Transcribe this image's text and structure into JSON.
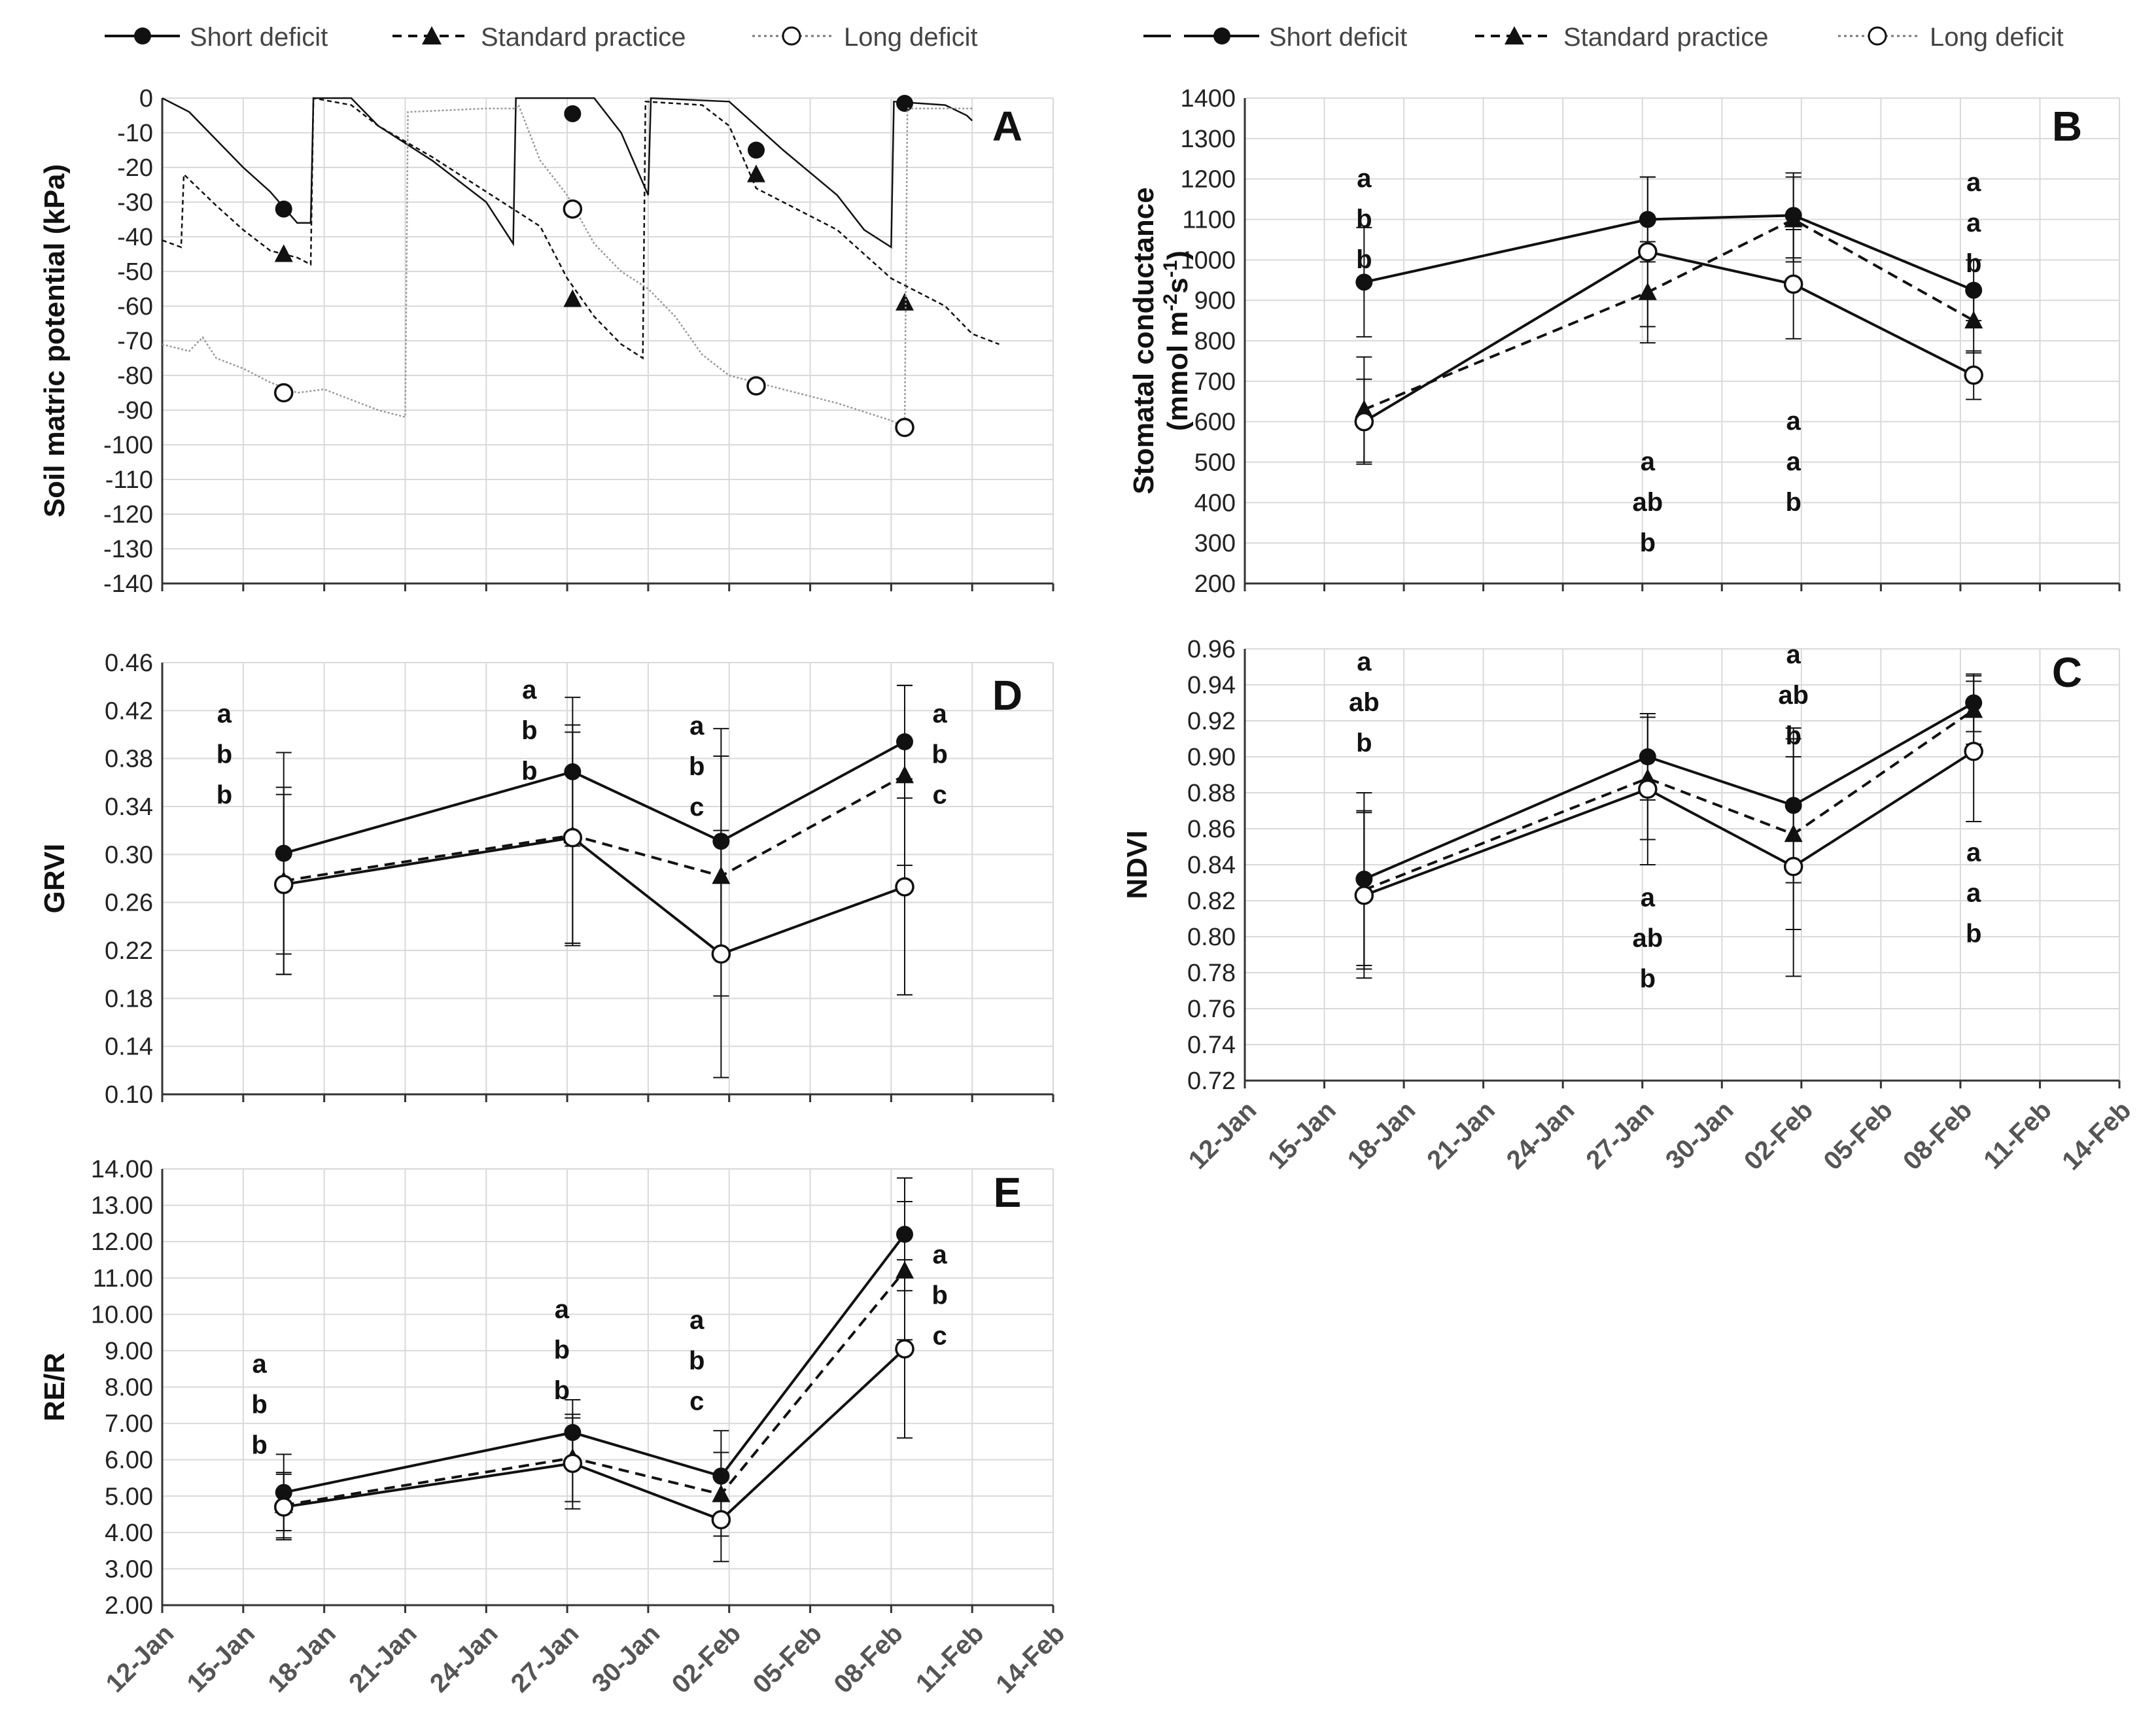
{
  "legend_entries": [
    "Short deficit",
    "Standard practice",
    "Long deficit"
  ],
  "x_tick_labels": [
    "12-Jan",
    "15-Jan",
    "18-Jan",
    "21-Jan",
    "24-Jan",
    "27-Jan",
    "30-Jan",
    "02-Feb",
    "05-Feb",
    "08-Feb",
    "11-Feb",
    "14-Feb"
  ],
  "chart_data": [
    {
      "id": "A",
      "type": "line",
      "panel_label": "A",
      "ylabel": "Soil matric potential (kPa)",
      "ylim": [
        -140,
        0
      ],
      "yticks": [
        0,
        -10,
        -20,
        -30,
        -40,
        -50,
        -60,
        -70,
        -80,
        -90,
        -100,
        -110,
        -120,
        -130,
        -140
      ],
      "xlim": [
        12,
        45
      ],
      "x_note": "x in days since 1-Jan",
      "series": [
        {
          "name": "Short deficit",
          "marker_x": [
            16.5,
            27.2,
            34.0,
            39.5
          ],
          "marker_y": [
            -32,
            -4.5,
            -15,
            -1.5
          ],
          "trace": [
            [
              12,
              0
            ],
            [
              13,
              -4
            ],
            [
              14,
              -12
            ],
            [
              15,
              -20
            ],
            [
              16,
              -27
            ],
            [
              17,
              -36
            ],
            [
              17.5,
              -36
            ],
            [
              17.6,
              0
            ],
            [
              19,
              0
            ],
            [
              20,
              -8
            ],
            [
              22,
              -18
            ],
            [
              24,
              -30
            ],
            [
              25,
              -42
            ],
            [
              25.1,
              0
            ],
            [
              28,
              0
            ],
            [
              29,
              -10
            ],
            [
              30,
              -28
            ],
            [
              30.1,
              0
            ],
            [
              33,
              -1
            ],
            [
              35,
              -15
            ],
            [
              37,
              -28
            ],
            [
              38,
              -38
            ],
            [
              39,
              -43
            ],
            [
              39.1,
              -1
            ],
            [
              41,
              -2
            ],
            [
              41.8,
              -5
            ],
            [
              42,
              -6.5
            ]
          ]
        },
        {
          "name": "Standard practice",
          "marker_x": [
            16.5,
            27.2,
            34.0,
            39.5
          ],
          "marker_y": [
            -45,
            -58,
            -22,
            -59
          ],
          "trace": [
            [
              12,
              -41
            ],
            [
              12.7,
              -43
            ],
            [
              12.8,
              -22
            ],
            [
              14,
              -31
            ],
            [
              15,
              -38
            ],
            [
              16,
              -44
            ],
            [
              17,
              -46
            ],
            [
              17.5,
              -48
            ],
            [
              17.6,
              0
            ],
            [
              19,
              -2
            ],
            [
              20,
              -8
            ],
            [
              22,
              -17
            ],
            [
              24,
              -27
            ],
            [
              26,
              -37
            ],
            [
              27,
              -52
            ],
            [
              28,
              -63
            ],
            [
              29,
              -71
            ],
            [
              29.8,
              -75
            ],
            [
              29.9,
              -1
            ],
            [
              32,
              -2
            ],
            [
              33,
              -8
            ],
            [
              34,
              -26
            ],
            [
              35,
              -30
            ],
            [
              37,
              -38
            ],
            [
              39,
              -52
            ],
            [
              41,
              -60
            ],
            [
              42,
              -68
            ],
            [
              43,
              -71
            ]
          ]
        },
        {
          "name": "Long deficit",
          "marker_x": [
            16.5,
            27.2,
            34.0,
            39.5
          ],
          "marker_y": [
            -85,
            -32,
            -83,
            -95
          ],
          "trace": [
            [
              12,
              -71
            ],
            [
              13,
              -73
            ],
            [
              13.5,
              -69
            ],
            [
              14,
              -75
            ],
            [
              15,
              -78
            ],
            [
              16,
              -82
            ],
            [
              17,
              -85
            ],
            [
              18,
              -84
            ],
            [
              19,
              -87
            ],
            [
              20,
              -90
            ],
            [
              21,
              -92
            ],
            [
              21.1,
              -4
            ],
            [
              24,
              -3
            ],
            [
              25.1,
              -3
            ],
            [
              25.2,
              -2
            ],
            [
              26,
              -18
            ],
            [
              27,
              -28
            ],
            [
              28,
              -42
            ],
            [
              29,
              -50
            ],
            [
              30,
              -55
            ],
            [
              31,
              -63
            ],
            [
              32,
              -74
            ],
            [
              33,
              -80
            ],
            [
              35,
              -84
            ],
            [
              37,
              -88
            ],
            [
              39,
              -93
            ],
            [
              39.5,
              -95
            ],
            [
              39.6,
              -3
            ],
            [
              41,
              -3
            ],
            [
              42,
              -3
            ]
          ]
        }
      ],
      "annotations": []
    },
    {
      "id": "B",
      "type": "line",
      "panel_label": "B",
      "ylabel": "Stomatal conductance",
      "ylabel_line2_base": "(mmol m",
      "ylabel_line2_sup1": "-2",
      "ylabel_line2_mid": "s",
      "ylabel_line2_sup2": "-1",
      "ylabel_line2_end": ")",
      "ylim": [
        200,
        1400
      ],
      "yticks": [
        200,
        300,
        400,
        500,
        600,
        700,
        800,
        900,
        1000,
        1100,
        1200,
        1300,
        1400
      ],
      "xlim": [
        12,
        45
      ],
      "x": [
        16.5,
        27.2,
        32.7,
        39.5
      ],
      "series": [
        {
          "name": "Short deficit",
          "values": [
            945,
            1100,
            1110,
            925
          ],
          "err": [
            135,
            105,
            105,
            75
          ]
        },
        {
          "name": "Standard practice",
          "values": [
            630,
            920,
            1100,
            850
          ],
          "err": [
            130,
            125,
            105,
            80
          ]
        },
        {
          "name": "Long deficit",
          "values": [
            600,
            1020,
            940,
            715
          ],
          "err": [
            105,
            185,
            135,
            60
          ]
        }
      ],
      "annotations": [
        {
          "x": 16.5,
          "y": 1180,
          "lines": [
            "a",
            "b",
            "b"
          ]
        },
        {
          "x": 27.2,
          "y": 480,
          "lines": [
            "a",
            "ab",
            "b"
          ]
        },
        {
          "x": 32.7,
          "y": 580,
          "lines": [
            "a",
            "a",
            "b"
          ]
        },
        {
          "x": 39.5,
          "y": 1170,
          "lines": [
            "a",
            "a",
            "b"
          ]
        }
      ]
    },
    {
      "id": "D",
      "type": "line",
      "panel_label": "D",
      "ylabel": "GRVI",
      "ylim": [
        0.1,
        0.46
      ],
      "yticks": [
        "0.10",
        "0.14",
        "0.18",
        "0.22",
        "0.26",
        "0.30",
        "0.34",
        "0.38",
        "0.42",
        "0.46"
      ],
      "xlim": [
        12,
        45
      ],
      "x": [
        16.5,
        27.2,
        32.7,
        39.5
      ],
      "series": [
        {
          "name": "Short deficit",
          "values": [
            0.301,
            0.369,
            0.311,
            0.394
          ],
          "err": [
            0.084,
            0.062,
            0.094,
            0.047
          ]
        },
        {
          "name": "Standard practice",
          "values": [
            0.278,
            0.316,
            0.282,
            0.366
          ],
          "err": [
            0.078,
            0.092,
            0.1,
            0.075
          ]
        },
        {
          "name": "Long deficit",
          "values": [
            0.275,
            0.314,
            0.217,
            0.273
          ],
          "err": [
            0.075,
            0.088,
            0.103,
            0.09
          ]
        }
      ],
      "annotations": [
        {
          "x": 14.3,
          "y": 0.41,
          "lines": [
            "a",
            "b",
            "b"
          ]
        },
        {
          "x": 25.6,
          "y": 0.43,
          "lines": [
            "a",
            "b",
            "b"
          ]
        },
        {
          "x": 31.8,
          "y": 0.4,
          "lines": [
            "a",
            "b",
            "c"
          ]
        },
        {
          "x": 40.8,
          "y": 0.41,
          "lines": [
            "a",
            "b",
            "c"
          ]
        }
      ]
    },
    {
      "id": "C",
      "type": "line",
      "panel_label": "C",
      "ylabel": "NDVI",
      "ylim": [
        0.72,
        0.96
      ],
      "yticks": [
        "0.72",
        "0.74",
        "0.76",
        "0.78",
        "0.80",
        "0.82",
        "0.84",
        "0.86",
        "0.88",
        "0.90",
        "0.92",
        "0.94",
        "0.96"
      ],
      "xlim": [
        12,
        45
      ],
      "x": [
        16.5,
        27.2,
        32.7,
        39.5
      ],
      "series": [
        {
          "name": "Short deficit",
          "values": [
            0.832,
            0.9,
            0.873,
            0.93
          ],
          "err": [
            0.048,
            0.024,
            0.043,
            0.016
          ]
        },
        {
          "name": "Standard practice",
          "values": [
            0.826,
            0.888,
            0.857,
            0.926
          ],
          "err": [
            0.044,
            0.034,
            0.053,
            0.019
          ]
        },
        {
          "name": "Long deficit",
          "values": [
            0.823,
            0.882,
            0.839,
            0.903
          ],
          "err": [
            0.046,
            0.042,
            0.061,
            0.039
          ]
        }
      ],
      "annotations": [
        {
          "x": 16.5,
          "y": 0.948,
          "lines": [
            "a",
            "ab",
            "b"
          ]
        },
        {
          "x": 27.2,
          "y": 0.817,
          "lines": [
            "a",
            "ab",
            "b"
          ]
        },
        {
          "x": 32.7,
          "y": 0.952,
          "lines": [
            "a",
            "ab",
            "b"
          ]
        },
        {
          "x": 39.5,
          "y": 0.842,
          "lines": [
            "a",
            "a",
            "b"
          ]
        }
      ]
    },
    {
      "id": "E",
      "type": "line",
      "panel_label": "E",
      "ylabel": "RE/R",
      "ylim": [
        2.0,
        14.0
      ],
      "yticks": [
        "2.00",
        "3.00",
        "4.00",
        "5.00",
        "6.00",
        "7.00",
        "8.00",
        "9.00",
        "10.00",
        "11.00",
        "12.00",
        "13.00",
        "14.00"
      ],
      "xlim": [
        12,
        45
      ],
      "x": [
        16.5,
        27.2,
        32.7,
        39.5
      ],
      "series": [
        {
          "name": "Short deficit",
          "values": [
            5.1,
            6.75,
            5.55,
            12.2
          ],
          "err": [
            1.05,
            0.9,
            1.25,
            1.55
          ]
        },
        {
          "name": "Standard practice",
          "values": [
            4.75,
            6.05,
            5.05,
            11.2
          ],
          "err": [
            0.9,
            1.2,
            1.15,
            1.9
          ]
        },
        {
          "name": "Long deficit",
          "values": [
            4.7,
            5.9,
            4.35,
            9.05
          ],
          "err": [
            0.9,
            1.25,
            1.15,
            2.45
          ]
        }
      ],
      "annotations": [
        {
          "x": 15.6,
          "y": 8.4,
          "lines": [
            "a",
            "b",
            "b"
          ]
        },
        {
          "x": 26.8,
          "y": 9.9,
          "lines": [
            "a",
            "b",
            "b"
          ]
        },
        {
          "x": 31.8,
          "y": 9.6,
          "lines": [
            "a",
            "b",
            "c"
          ]
        },
        {
          "x": 40.8,
          "y": 11.4,
          "lines": [
            "a",
            "b",
            "c"
          ]
        }
      ]
    }
  ]
}
